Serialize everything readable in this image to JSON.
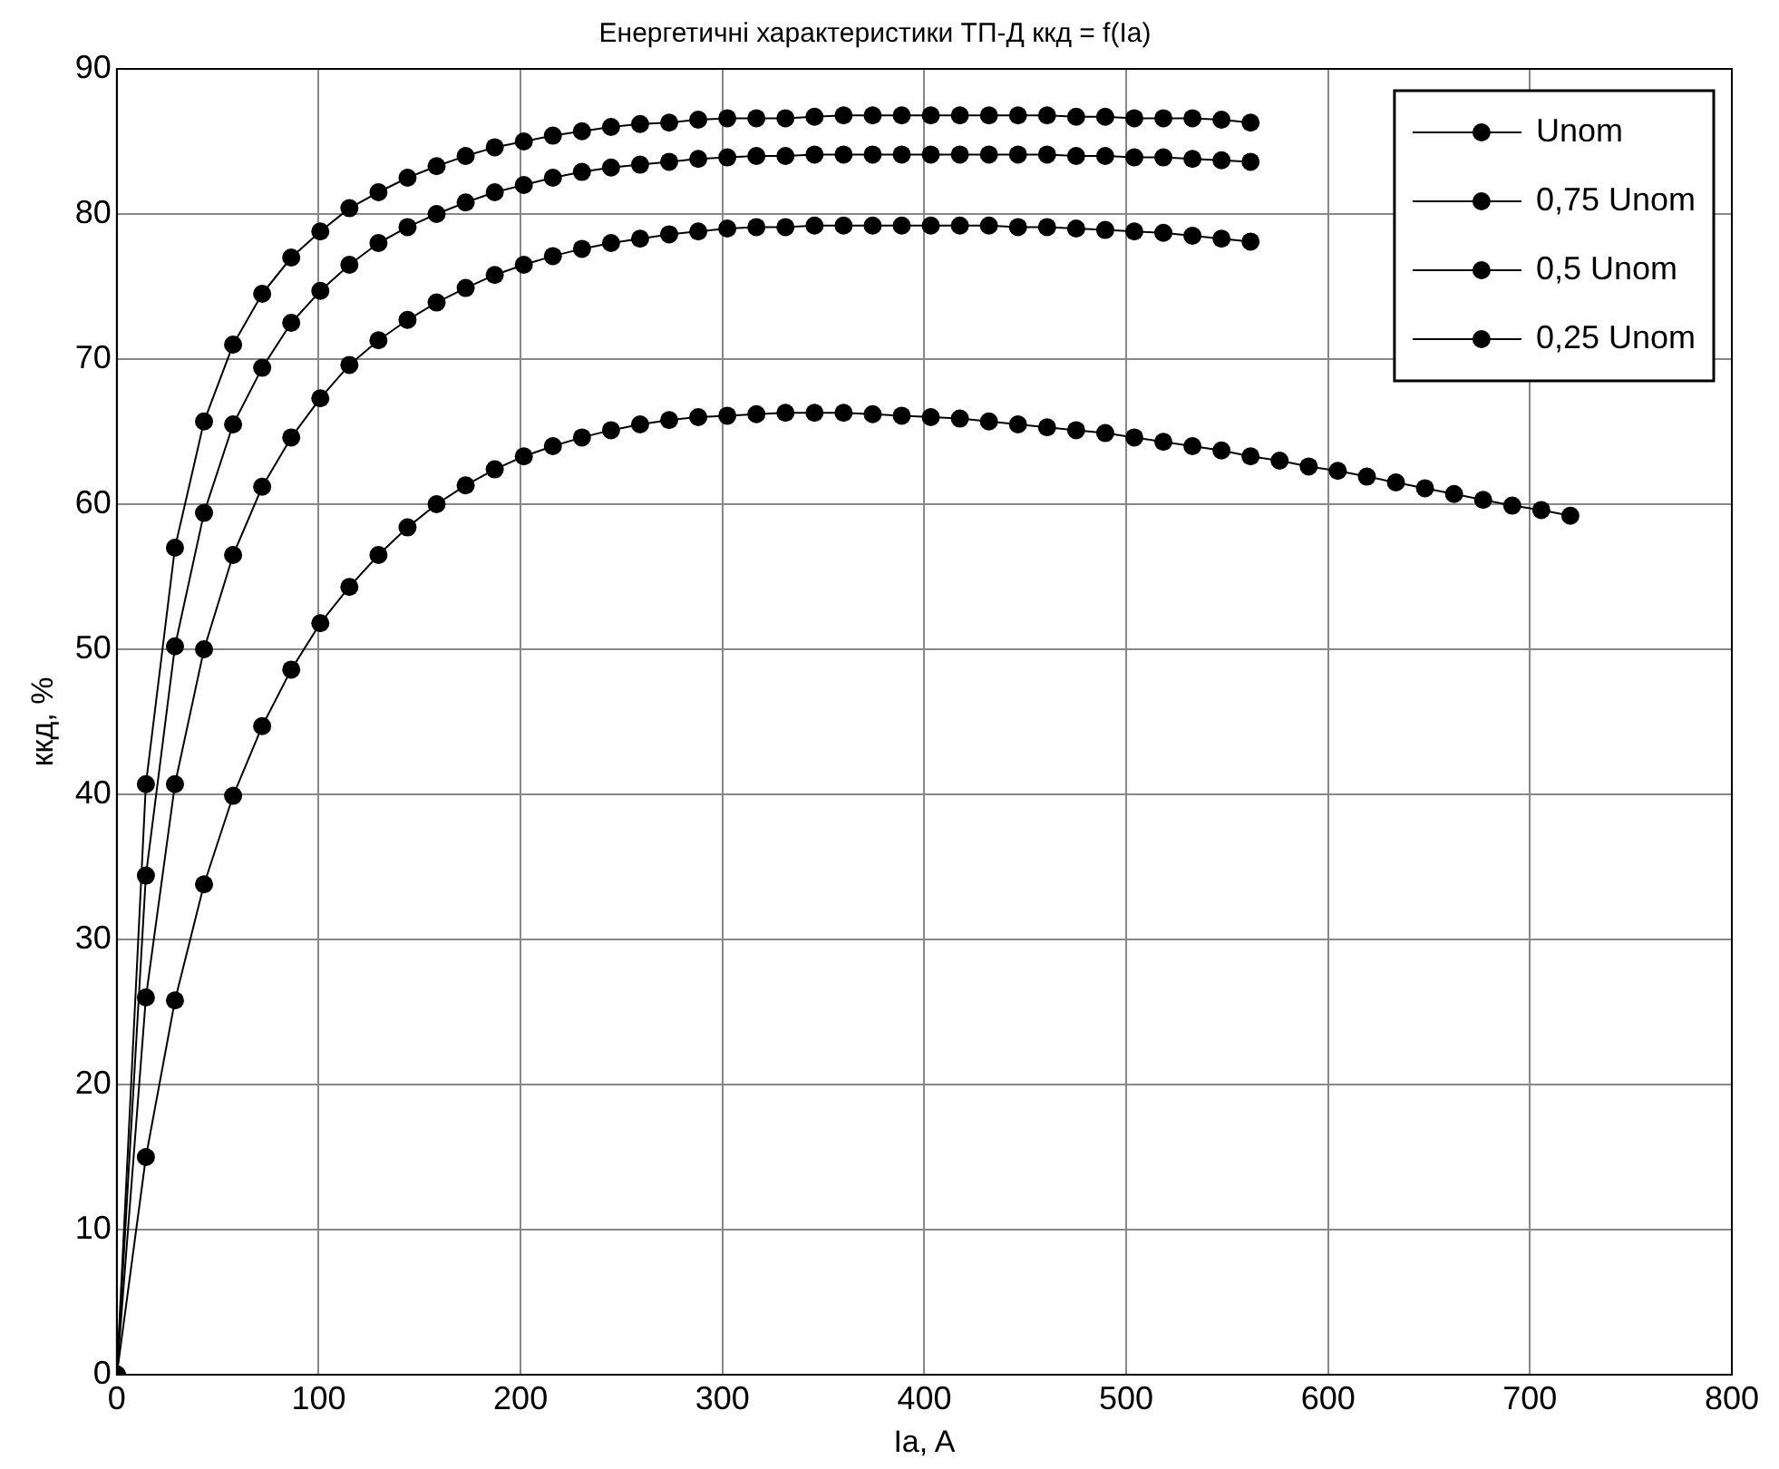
{
  "chart_data": {
    "type": "line",
    "title": "Енергетичні характеристики ТП-Д ккд = f(Ia)",
    "xlabel": "Ia, A",
    "ylabel": "ккд, %",
    "x": [
      0,
      14.4,
      28.8,
      43.2,
      57.6,
      72,
      86.4,
      100.8,
      115.2,
      129.6,
      144,
      158.4,
      172.8,
      187.2,
      201.6,
      216,
      230.4,
      244.8,
      259.2,
      273.6,
      288,
      302.4,
      316.8,
      331.2,
      345.6,
      360,
      374.4,
      388.8,
      403.2,
      417.6,
      432,
      446.4,
      460.8,
      475.2,
      489.6,
      504,
      518.4,
      532.8,
      547.2,
      561.6,
      576,
      590.4,
      604.8,
      619.2,
      633.6,
      648,
      662.4,
      676.8,
      691.2,
      705.6,
      720
    ],
    "series": [
      {
        "name": "Unom",
        "color": "#000000",
        "values": [
          0,
          40.7,
          57,
          65.7,
          71,
          74.5,
          77,
          78.8,
          80.4,
          81.5,
          82.5,
          83.3,
          84,
          84.6,
          85,
          85.4,
          85.7,
          86,
          86.2,
          86.3,
          86.5,
          86.6,
          86.6,
          86.6,
          86.7,
          86.8,
          86.8,
          86.8,
          86.8,
          86.8,
          86.8,
          86.8,
          86.8,
          86.7,
          86.7,
          86.6,
          86.6,
          86.6,
          86.5,
          86.3,
          null,
          null,
          null,
          null,
          null,
          null,
          null,
          null,
          null,
          null,
          null
        ]
      },
      {
        "name": "0,75 Unom",
        "color": "#000000",
        "values": [
          0,
          34.4,
          50.2,
          59.4,
          65.5,
          69.4,
          72.5,
          74.7,
          76.5,
          78,
          79.1,
          80,
          80.8,
          81.5,
          82,
          82.5,
          82.9,
          83.2,
          83.4,
          83.6,
          83.8,
          83.9,
          84,
          84,
          84.1,
          84.1,
          84.1,
          84.1,
          84.1,
          84.1,
          84.1,
          84.1,
          84.1,
          84,
          84,
          83.9,
          83.9,
          83.8,
          83.7,
          83.6,
          null,
          null,
          null,
          null,
          null,
          null,
          null,
          null,
          null,
          null,
          null
        ]
      },
      {
        "name": "0,5 Unom",
        "color": "#000000",
        "values": [
          0,
          26,
          40.7,
          50,
          56.5,
          61.2,
          64.6,
          67.3,
          69.6,
          71.3,
          72.7,
          73.9,
          74.9,
          75.8,
          76.5,
          77.1,
          77.6,
          78,
          78.3,
          78.6,
          78.8,
          79,
          79.1,
          79.1,
          79.2,
          79.2,
          79.2,
          79.2,
          79.2,
          79.2,
          79.2,
          79.1,
          79.1,
          79,
          78.9,
          78.8,
          78.7,
          78.5,
          78.3,
          78.1,
          null,
          null,
          null,
          null,
          null,
          null,
          null,
          null,
          null,
          null,
          null
        ]
      },
      {
        "name": "0,25 Unom",
        "color": "#000000",
        "values": [
          0,
          15,
          25.8,
          33.8,
          39.9,
          44.7,
          48.6,
          51.8,
          54.3,
          56.5,
          58.4,
          60,
          61.3,
          62.4,
          63.3,
          64,
          64.6,
          65.1,
          65.5,
          65.8,
          66,
          66.1,
          66.2,
          66.3,
          66.3,
          66.3,
          66.2,
          66.1,
          66,
          65.9,
          65.7,
          65.5,
          65.3,
          65.1,
          64.9,
          64.6,
          64.3,
          64,
          63.7,
          63.3,
          63,
          62.6,
          62.3,
          61.9,
          61.5,
          61.1,
          60.7,
          60.3,
          59.9,
          59.6,
          59.2
        ]
      }
    ],
    "xlim": [
      0,
      800
    ],
    "xticks": [
      0,
      100,
      200,
      300,
      400,
      500,
      600,
      700,
      800
    ],
    "ylim": [
      0,
      90
    ],
    "yticks": [
      0,
      10,
      20,
      30,
      40,
      50,
      60,
      70,
      80,
      90
    ],
    "grid": true,
    "legend": "top right",
    "marker": "circle",
    "line_style": "solid"
  }
}
